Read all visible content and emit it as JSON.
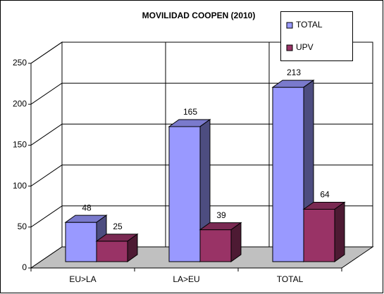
{
  "chart_data": {
    "type": "bar3d",
    "title": "MOVILIDAD COOPEN (2010)",
    "categories": [
      "EU>LA",
      "LA>EU",
      "TOTAL"
    ],
    "series": [
      {
        "name": "TOTAL",
        "color": "#9999ff",
        "values": [
          48,
          165,
          213
        ]
      },
      {
        "name": "UPV",
        "color": "#993366",
        "values": [
          25,
          39,
          64
        ]
      }
    ],
    "ylim": [
      0,
      250
    ],
    "yticks": [
      0,
      50,
      100,
      150,
      200,
      250
    ],
    "grid": true,
    "legend": "top-right"
  }
}
